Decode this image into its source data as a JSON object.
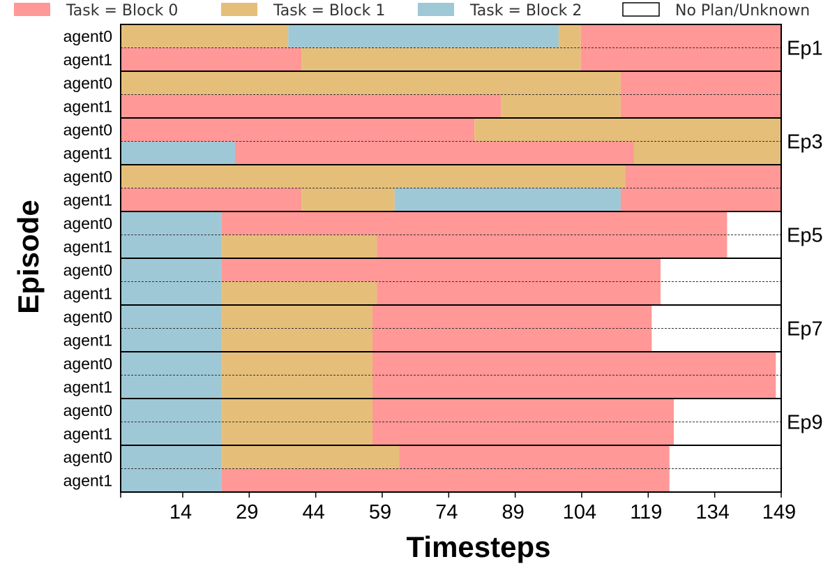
{
  "chart_data": {
    "type": "gantt",
    "title": "",
    "xlabel": "Timesteps",
    "ylabel": "Episode",
    "x_domain": [
      0,
      149
    ],
    "x_ticks": [
      14,
      29,
      44,
      59,
      74,
      89,
      104,
      119,
      134,
      149
    ],
    "legend": [
      {
        "key": "block0",
        "label": "Task = Block 0",
        "color": "#ff9896"
      },
      {
        "key": "block1",
        "label": "Task = Block 1",
        "color": "#e5bf79"
      },
      {
        "key": "block2",
        "label": "Task = Block 2",
        "color": "#9fc8d7"
      },
      {
        "key": "none",
        "label": "No Plan/Unknown",
        "color": "#ffffff"
      }
    ],
    "episodes": [
      {
        "label": "Ep1",
        "rows": [
          {
            "agent": "agent0",
            "segments": [
              {
                "task": "block1",
                "start": 0,
                "end": 37.8
              },
              {
                "task": "block2",
                "start": 37.8,
                "end": 98.8
              },
              {
                "task": "block1",
                "start": 98.8,
                "end": 103.8
              },
              {
                "task": "block0",
                "start": 103.8,
                "end": 149
              }
            ]
          },
          {
            "agent": "agent1",
            "segments": [
              {
                "task": "block0",
                "start": 0,
                "end": 40.8
              },
              {
                "task": "block1",
                "start": 40.8,
                "end": 103.8
              },
              {
                "task": "block0",
                "start": 103.8,
                "end": 149
              }
            ]
          }
        ]
      },
      {
        "label": "",
        "rows": [
          {
            "agent": "agent0",
            "segments": [
              {
                "task": "block1",
                "start": 0,
                "end": 112.8
              },
              {
                "task": "block0",
                "start": 112.8,
                "end": 149
              }
            ]
          },
          {
            "agent": "agent1",
            "segments": [
              {
                "task": "block0",
                "start": 0,
                "end": 85.8
              },
              {
                "task": "block1",
                "start": 85.8,
                "end": 112.8
              },
              {
                "task": "block0",
                "start": 112.8,
                "end": 149
              }
            ]
          }
        ]
      },
      {
        "label": "Ep3",
        "rows": [
          {
            "agent": "agent0",
            "segments": [
              {
                "task": "block0",
                "start": 0,
                "end": 79.8
              },
              {
                "task": "block1",
                "start": 79.8,
                "end": 149
              }
            ]
          },
          {
            "agent": "agent1",
            "segments": [
              {
                "task": "block2",
                "start": 0,
                "end": 25.8
              },
              {
                "task": "block0",
                "start": 25.8,
                "end": 115.8
              },
              {
                "task": "block1",
                "start": 115.8,
                "end": 149
              }
            ]
          }
        ]
      },
      {
        "label": "",
        "rows": [
          {
            "agent": "agent0",
            "segments": [
              {
                "task": "block1",
                "start": 0,
                "end": 113.8
              },
              {
                "task": "block0",
                "start": 113.8,
                "end": 149
              }
            ]
          },
          {
            "agent": "agent1",
            "segments": [
              {
                "task": "block0",
                "start": 0,
                "end": 40.8
              },
              {
                "task": "block1",
                "start": 40.8,
                "end": 61.8
              },
              {
                "task": "block2",
                "start": 61.8,
                "end": 112.8
              },
              {
                "task": "block0",
                "start": 112.8,
                "end": 149
              }
            ]
          }
        ]
      },
      {
        "label": "Ep5",
        "rows": [
          {
            "agent": "agent0",
            "segments": [
              {
                "task": "block2",
                "start": 0,
                "end": 22.8
              },
              {
                "task": "block0",
                "start": 22.8,
                "end": 136.8
              },
              {
                "task": "none",
                "start": 136.8,
                "end": 149
              }
            ]
          },
          {
            "agent": "agent1",
            "segments": [
              {
                "task": "block2",
                "start": 0,
                "end": 22.8
              },
              {
                "task": "block1",
                "start": 22.8,
                "end": 57.8
              },
              {
                "task": "block0",
                "start": 57.8,
                "end": 136.8
              },
              {
                "task": "none",
                "start": 136.8,
                "end": 149
              }
            ]
          }
        ]
      },
      {
        "label": "",
        "rows": [
          {
            "agent": "agent0",
            "segments": [
              {
                "task": "block2",
                "start": 0,
                "end": 22.8
              },
              {
                "task": "block0",
                "start": 22.8,
                "end": 121.8
              },
              {
                "task": "none",
                "start": 121.8,
                "end": 149
              }
            ]
          },
          {
            "agent": "agent1",
            "segments": [
              {
                "task": "block2",
                "start": 0,
                "end": 22.8
              },
              {
                "task": "block1",
                "start": 22.8,
                "end": 57.8
              },
              {
                "task": "block0",
                "start": 57.8,
                "end": 121.8
              },
              {
                "task": "none",
                "start": 121.8,
                "end": 149
              }
            ]
          }
        ]
      },
      {
        "label": "Ep7",
        "rows": [
          {
            "agent": "agent0",
            "segments": [
              {
                "task": "block2",
                "start": 0,
                "end": 22.8
              },
              {
                "task": "block1",
                "start": 22.8,
                "end": 56.8
              },
              {
                "task": "block0",
                "start": 56.8,
                "end": 119.8
              },
              {
                "task": "none",
                "start": 119.8,
                "end": 149
              }
            ]
          },
          {
            "agent": "agent1",
            "segments": [
              {
                "task": "block2",
                "start": 0,
                "end": 22.8
              },
              {
                "task": "block1",
                "start": 22.8,
                "end": 56.8
              },
              {
                "task": "block0",
                "start": 56.8,
                "end": 119.8
              },
              {
                "task": "none",
                "start": 119.8,
                "end": 149
              }
            ]
          }
        ]
      },
      {
        "label": "",
        "rows": [
          {
            "agent": "agent0",
            "segments": [
              {
                "task": "block2",
                "start": 0,
                "end": 22.8
              },
              {
                "task": "block1",
                "start": 22.8,
                "end": 56.8
              },
              {
                "task": "block0",
                "start": 56.8,
                "end": 147.8
              },
              {
                "task": "none",
                "start": 147.8,
                "end": 149
              }
            ]
          },
          {
            "agent": "agent1",
            "segments": [
              {
                "task": "block2",
                "start": 0,
                "end": 22.8
              },
              {
                "task": "block1",
                "start": 22.8,
                "end": 56.8
              },
              {
                "task": "block0",
                "start": 56.8,
                "end": 147.8
              },
              {
                "task": "none",
                "start": 147.8,
                "end": 149
              }
            ]
          }
        ]
      },
      {
        "label": "Ep9",
        "rows": [
          {
            "agent": "agent0",
            "segments": [
              {
                "task": "block2",
                "start": 0,
                "end": 22.8
              },
              {
                "task": "block1",
                "start": 22.8,
                "end": 56.8
              },
              {
                "task": "block0",
                "start": 56.8,
                "end": 124.8
              },
              {
                "task": "none",
                "start": 124.8,
                "end": 149
              }
            ]
          },
          {
            "agent": "agent1",
            "segments": [
              {
                "task": "block2",
                "start": 0,
                "end": 22.8
              },
              {
                "task": "block1",
                "start": 22.8,
                "end": 56.8
              },
              {
                "task": "block0",
                "start": 56.8,
                "end": 124.8
              },
              {
                "task": "none",
                "start": 124.8,
                "end": 149
              }
            ]
          }
        ]
      },
      {
        "label": "",
        "rows": [
          {
            "agent": "agent0",
            "segments": [
              {
                "task": "block2",
                "start": 0,
                "end": 22.8
              },
              {
                "task": "block1",
                "start": 22.8,
                "end": 62.8
              },
              {
                "task": "block0",
                "start": 62.8,
                "end": 123.8
              },
              {
                "task": "none",
                "start": 123.8,
                "end": 149
              }
            ]
          },
          {
            "agent": "agent1",
            "segments": [
              {
                "task": "block2",
                "start": 0,
                "end": 22.8
              },
              {
                "task": "block0",
                "start": 22.8,
                "end": 123.8
              },
              {
                "task": "none",
                "start": 123.8,
                "end": 149
              }
            ]
          }
        ]
      }
    ]
  }
}
